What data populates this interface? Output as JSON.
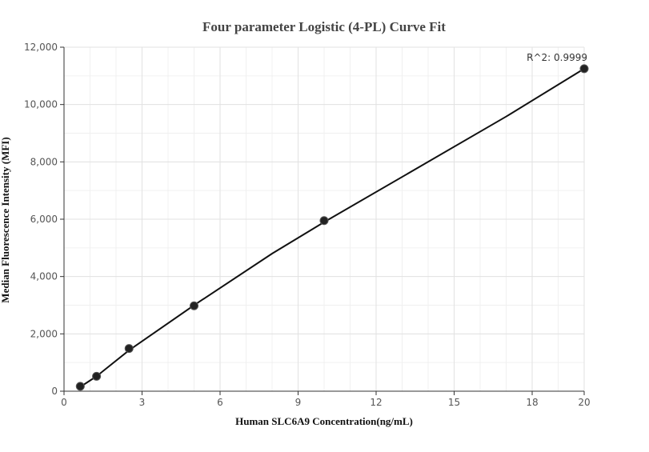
{
  "chart_data": {
    "type": "scatter",
    "title": "Four parameter Logistic (4-PL) Curve Fit",
    "xlabel": "Human SLC6A9 Concentration(ng/mL)",
    "ylabel": "Median Fluorescence Intensity (MFI)",
    "xlim": [
      0,
      20
    ],
    "ylim": [
      0,
      12000
    ],
    "x_ticks": [
      0,
      3,
      6,
      9,
      12,
      15,
      18,
      20
    ],
    "x_tick_labels": [
      "0",
      "3",
      "6",
      "9",
      "12",
      "15",
      "18",
      "20"
    ],
    "y_ticks": [
      0,
      2000,
      4000,
      6000,
      8000,
      10000,
      12000
    ],
    "y_tick_labels": [
      "0",
      "2,000",
      "4,000",
      "6,000",
      "8,000",
      "10,000",
      "12,000"
    ],
    "grid": true,
    "series": [
      {
        "points": [
          {
            "x": 0.625,
            "y": 170
          },
          {
            "x": 1.25,
            "y": 520
          },
          {
            "x": 2.5,
            "y": 1490
          },
          {
            "x": 5,
            "y": 2980
          },
          {
            "x": 10,
            "y": 5950
          },
          {
            "x": 20,
            "y": 11250
          }
        ],
        "color": "#222222"
      }
    ],
    "fit_curve": {
      "x": [
        0.625,
        1.25,
        2.5,
        5,
        8,
        10,
        14,
        17,
        20
      ],
      "y": [
        150,
        520,
        1430,
        3000,
        4800,
        5900,
        8000,
        9580,
        11250
      ],
      "color": "#111111"
    },
    "annotations": [
      {
        "text": "R^2: 0.9999",
        "x": 20,
        "y": 11250
      }
    ]
  }
}
